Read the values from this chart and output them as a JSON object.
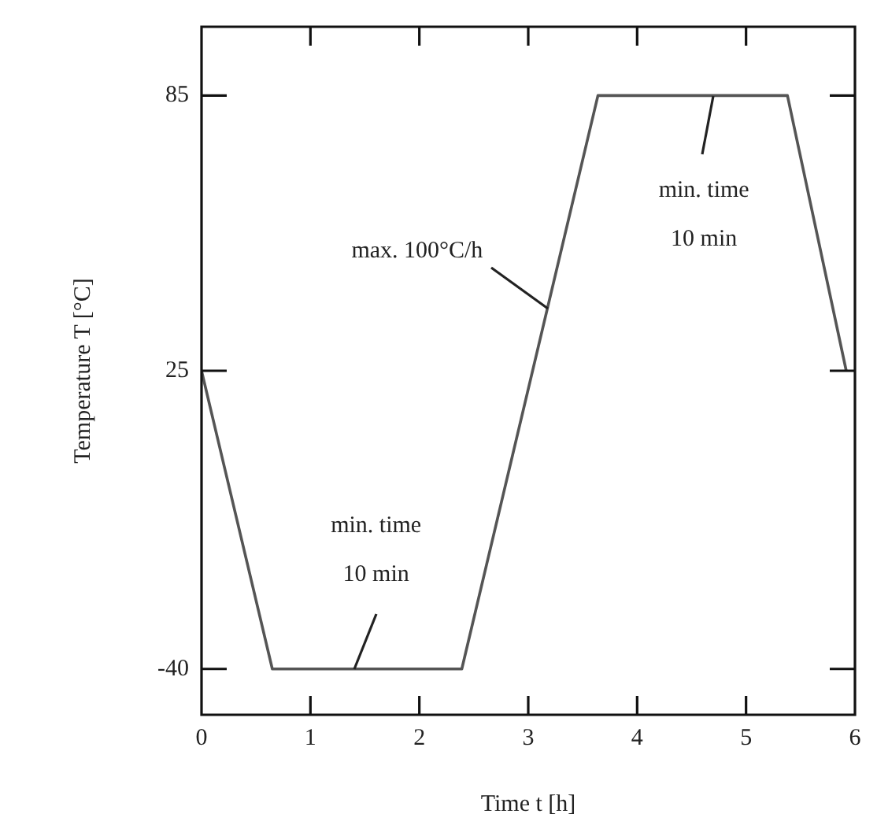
{
  "chart_data": {
    "type": "line",
    "xlabel": "Time t [h]",
    "ylabel": "Temperature T [°C]",
    "xlim": [
      0,
      6
    ],
    "xticks": [
      0,
      1,
      2,
      3,
      4,
      5,
      6
    ],
    "ylim": [
      -50,
      100
    ],
    "yticks": [
      -40,
      25,
      85
    ],
    "series": [
      {
        "color": "#555555",
        "x": [
          0,
          0.65,
          2.39,
          3.64,
          5.38,
          5.92
        ],
        "values": [
          25,
          -40,
          -40,
          85,
          85,
          25
        ]
      }
    ],
    "annotations": [
      {
        "text": "min. time\n10 min",
        "x": 1.4,
        "y": -40
      },
      {
        "text": "min. time\n10 min",
        "x": 4.7,
        "y": 85
      },
      {
        "text": "max. 100°C/h",
        "x": 3.18,
        "y": 38.6
      }
    ],
    "grid": false,
    "legend": false,
    "marker": "none",
    "line_style": "solid"
  }
}
